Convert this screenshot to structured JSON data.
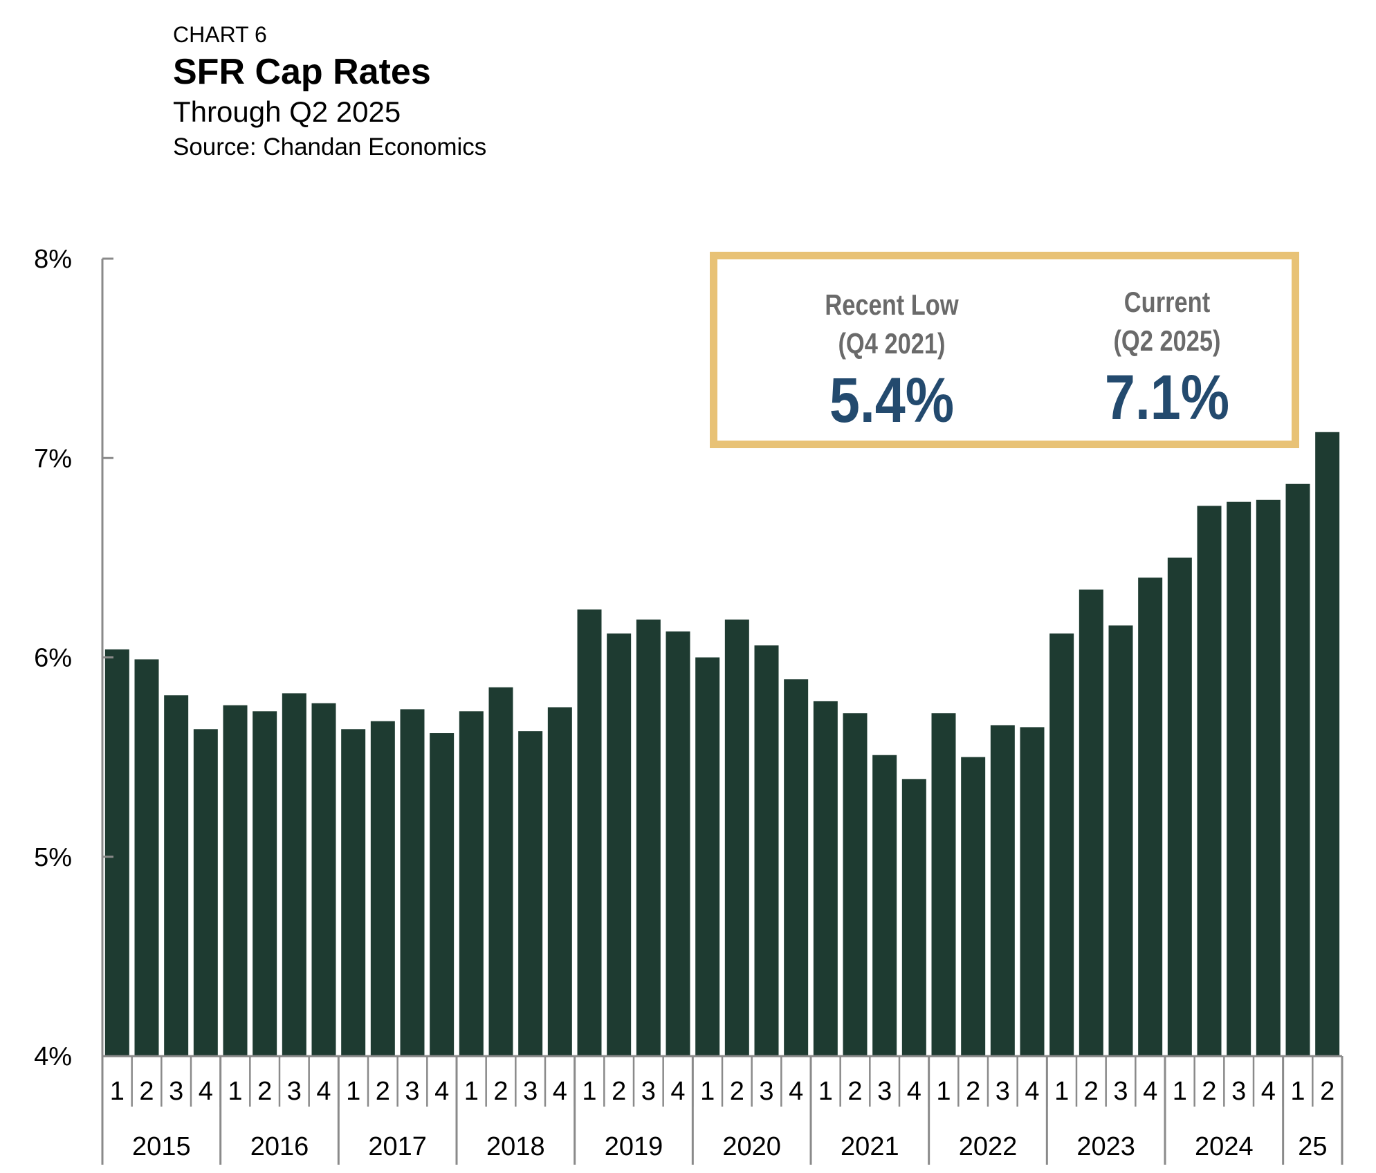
{
  "header": {
    "label": "CHART 6",
    "title": "SFR Cap Rates",
    "subtitle": "Through Q2 2025",
    "source": "Source: Chandan Economics"
  },
  "callout": {
    "low_heading_1": "Recent Low",
    "low_heading_2": "(Q4 2021)",
    "low_value": "5.4%",
    "current_heading_1": "Current",
    "current_heading_2": "(Q2 2025)",
    "current_value": "7.1%",
    "border_color": "#e8c276",
    "value_color": "#234a6e"
  },
  "chart_data": {
    "type": "bar",
    "bar_color": "#1e3b31",
    "ylim": [
      4,
      8
    ],
    "y_ticks": [
      "4%",
      "5%",
      "6%",
      "7%",
      "8%"
    ],
    "grid": false,
    "quarter_labels": [
      "1",
      "2",
      "3",
      "4",
      "1",
      "2",
      "3",
      "4",
      "1",
      "2",
      "3",
      "4",
      "1",
      "2",
      "3",
      "4",
      "1",
      "2",
      "3",
      "4",
      "1",
      "2",
      "3",
      "4",
      "1",
      "2",
      "3",
      "4",
      "1",
      "2",
      "3",
      "4",
      "1",
      "2",
      "3",
      "4",
      "1",
      "2",
      "3",
      "4",
      "1",
      "2"
    ],
    "year_groups": [
      {
        "label": "2015",
        "quarters": 4
      },
      {
        "label": "2016",
        "quarters": 4
      },
      {
        "label": "2017",
        "quarters": 4
      },
      {
        "label": "2018",
        "quarters": 4
      },
      {
        "label": "2019",
        "quarters": 4
      },
      {
        "label": "2020",
        "quarters": 4
      },
      {
        "label": "2021",
        "quarters": 4
      },
      {
        "label": "2022",
        "quarters": 4
      },
      {
        "label": "2023",
        "quarters": 4
      },
      {
        "label": "2024",
        "quarters": 4
      },
      {
        "label": "25",
        "quarters": 2
      }
    ],
    "values": [
      6.04,
      5.99,
      5.81,
      5.64,
      5.76,
      5.73,
      5.82,
      5.77,
      5.64,
      5.68,
      5.74,
      5.62,
      5.73,
      5.85,
      5.63,
      5.75,
      6.24,
      6.12,
      6.19,
      6.13,
      6.0,
      6.19,
      6.06,
      5.89,
      5.78,
      5.72,
      5.51,
      5.39,
      5.72,
      5.5,
      5.66,
      5.65,
      6.12,
      6.34,
      6.16,
      6.4,
      6.5,
      6.76,
      6.78,
      6.79,
      6.87,
      7.13
    ]
  }
}
